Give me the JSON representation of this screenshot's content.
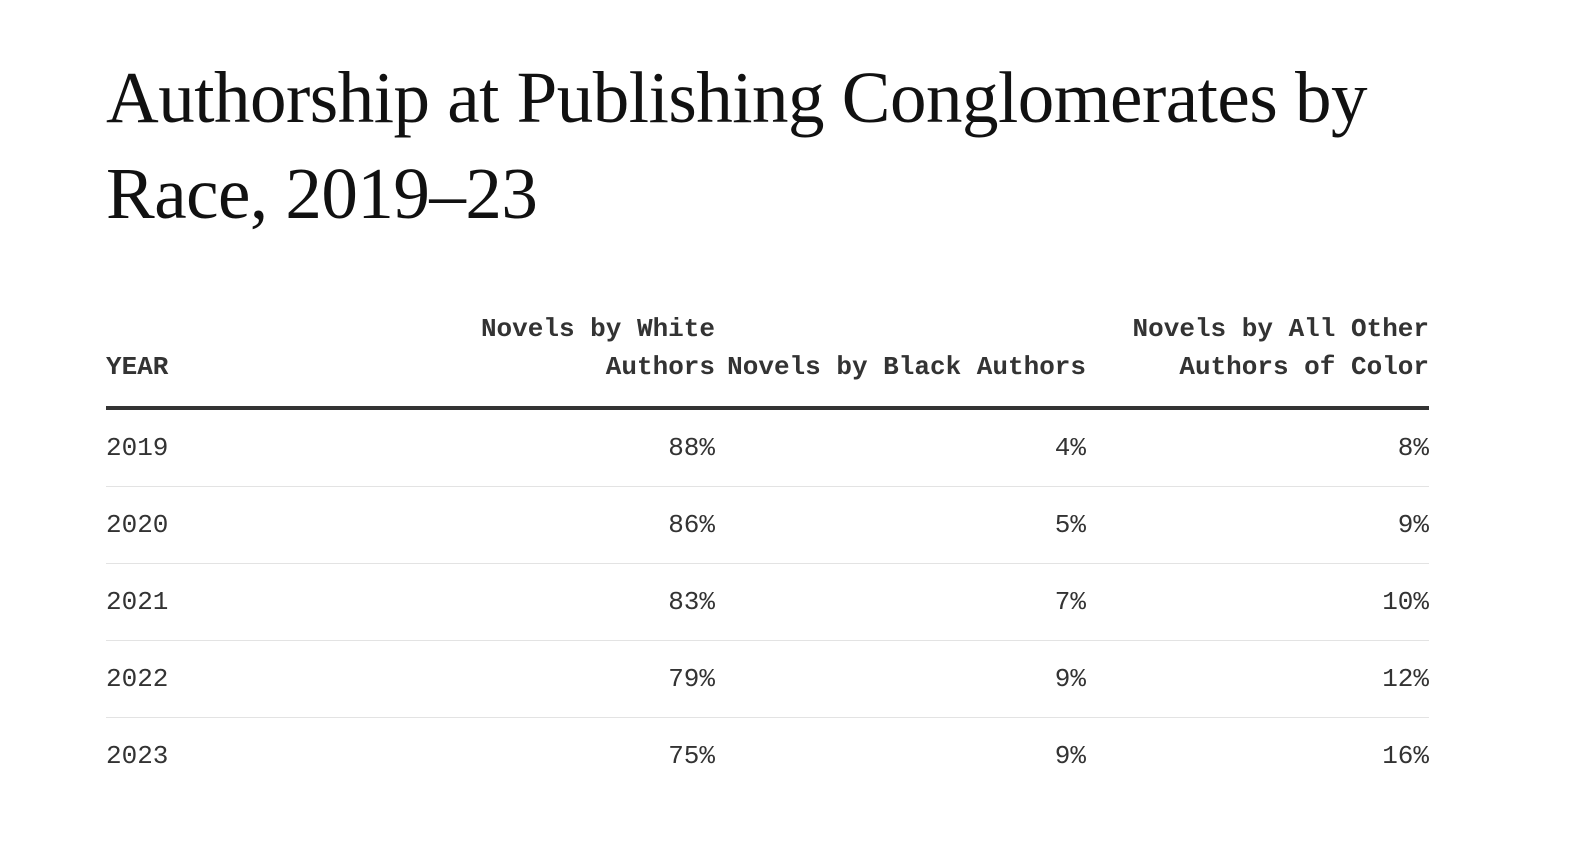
{
  "title": "Authorship at Publishing Conglomerates by Race, 2019–23",
  "chart_data": {
    "type": "table",
    "title": "Authorship at Publishing Conglomerates by Race, 2019–23",
    "columns": [
      "YEAR",
      "Novels by White Authors",
      "Novels by Black Authors",
      "Novels by All Other Authors of Color"
    ],
    "rows": [
      {
        "year": "2019",
        "white": "88%",
        "black": "4%",
        "other": "8%"
      },
      {
        "year": "2020",
        "white": "86%",
        "black": "5%",
        "other": "9%"
      },
      {
        "year": "2021",
        "white": "83%",
        "black": "7%",
        "other": "10%"
      },
      {
        "year": "2022",
        "white": "79%",
        "black": "9%",
        "other": "12%"
      },
      {
        "year": "2023",
        "white": "75%",
        "black": "9%",
        "other": "16%"
      }
    ]
  }
}
